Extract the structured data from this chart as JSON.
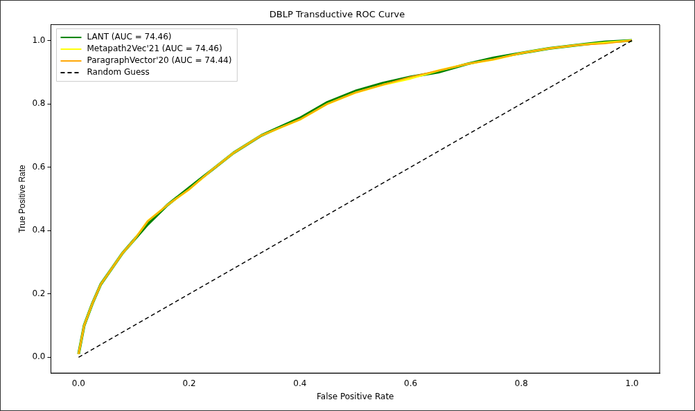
{
  "chart_data": {
    "type": "line",
    "title": "DBLP Transductive ROC Curve",
    "xlabel": "False Positive Rate",
    "ylabel": "True Positive Rate",
    "x": [
      0,
      0.01,
      0.025,
      0.04,
      0.06,
      0.08,
      0.1,
      0.125,
      0.16,
      0.2,
      0.24,
      0.28,
      0.33,
      0.4,
      0.45,
      0.5,
      0.55,
      0.6,
      0.65,
      0.7,
      0.75,
      0.8,
      0.85,
      0.9,
      0.95,
      1
    ],
    "series": [
      {
        "name": "LANT (AUC = 74.46)",
        "color": "#008000",
        "values": [
          0.01,
          0.1,
          0.17,
          0.23,
          0.28,
          0.33,
          0.37,
          0.42,
          0.48,
          0.535,
          0.59,
          0.645,
          0.7,
          0.755,
          0.805,
          0.84,
          0.865,
          0.885,
          0.9,
          0.925,
          0.945,
          0.96,
          0.975,
          0.985,
          0.995,
          1
        ]
      },
      {
        "name": "Metapath2Vec'21 (AUC = 74.46)",
        "color": "#ffff00",
        "values": [
          0.01,
          0.1,
          0.17,
          0.23,
          0.28,
          0.33,
          0.37,
          0.43,
          0.48,
          0.53,
          0.59,
          0.645,
          0.7,
          0.75,
          0.8,
          0.835,
          0.86,
          0.88,
          0.905,
          0.925,
          0.94,
          0.96,
          0.975,
          0.985,
          0.993,
          1
        ]
      },
      {
        "name": "ParagraphVector'20 (AUC = 74.44)",
        "color": "#ffa500",
        "values": [
          0.01,
          0.1,
          0.17,
          0.23,
          0.28,
          0.33,
          0.37,
          0.43,
          0.48,
          0.53,
          0.59,
          0.645,
          0.7,
          0.75,
          0.8,
          0.835,
          0.86,
          0.885,
          0.905,
          0.925,
          0.94,
          0.96,
          0.975,
          0.985,
          0.99,
          1
        ]
      },
      {
        "name": "Random Guess",
        "color": "#000000",
        "x": [
          0,
          1
        ],
        "values": [
          0,
          1
        ],
        "line_style": "dashed"
      }
    ],
    "xlim": [
      -0.05,
      1.05
    ],
    "ylim": [
      -0.05,
      1.05
    ],
    "xticks": [
      {
        "value": 0,
        "label": "0.0"
      },
      {
        "value": 0.2,
        "label": "0.2"
      },
      {
        "value": 0.4,
        "label": "0.4"
      },
      {
        "value": 0.6,
        "label": "0.6"
      },
      {
        "value": 0.8,
        "label": "0.8"
      },
      {
        "value": 1,
        "label": "1.0"
      }
    ],
    "yticks": [
      {
        "value": 0,
        "label": "0.0"
      },
      {
        "value": 0.2,
        "label": "0.2"
      },
      {
        "value": 0.4,
        "label": "0.4"
      },
      {
        "value": 0.6,
        "label": "0.6"
      },
      {
        "value": 0.8,
        "label": "0.8"
      },
      {
        "value": 1,
        "label": "1.0"
      }
    ],
    "grid": false,
    "legend": "top left",
    "line_style": "solid",
    "marker": "none"
  }
}
